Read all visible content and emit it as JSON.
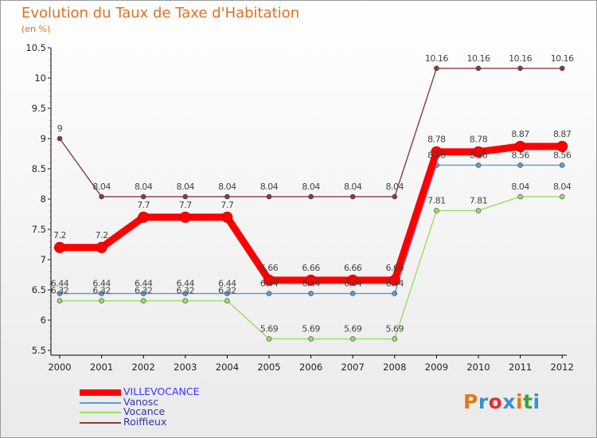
{
  "title": "Evolution du Taux de Taxe d'Habitation",
  "unit_label": "(en %)",
  "brand": {
    "text": "Proxiti",
    "letter_colors": [
      "#e07a1a",
      "#3a8fd0",
      "#e03030",
      "#3a8fd0",
      "#e07a1a",
      "#3aa03a",
      "#3a8fd0"
    ]
  },
  "chart_data": {
    "type": "line",
    "x": [
      "2000",
      "2001",
      "2002",
      "2003",
      "2004",
      "2005",
      "2006",
      "2007",
      "2008",
      "2009",
      "2010",
      "2011",
      "2012"
    ],
    "ylim": [
      5.5,
      10.5
    ],
    "y_ticks": [
      "5.5",
      "6",
      "6.5",
      "7",
      "7.5",
      "8",
      "8.5",
      "9",
      "9.5",
      "10",
      "10.5"
    ],
    "grid": false,
    "legend_position": "bottom-left",
    "series": [
      {
        "name": "VILLEVOCANCE",
        "color": "#ff0000",
        "values": [
          7.2,
          7.2,
          7.7,
          7.7,
          7.7,
          6.66,
          6.66,
          6.66,
          6.66,
          8.78,
          8.78,
          8.87,
          8.87
        ],
        "labels": [
          "7.2",
          "7.2",
          "7.7",
          "7.7",
          "7.7",
          "6.66",
          "6.66",
          "6.66",
          "6.66",
          "8.78",
          "8.78",
          "8.87",
          "8.87"
        ]
      },
      {
        "name": "Vanosc",
        "color": "#5b9bd5",
        "values": [
          6.44,
          6.44,
          6.44,
          6.44,
          6.44,
          6.44,
          6.44,
          6.44,
          6.44,
          8.56,
          8.56,
          8.56,
          8.56
        ],
        "labels": [
          "6.44",
          "6.44",
          "6.44",
          "6.44",
          "6.44",
          "6.44",
          "6.44",
          "6.44",
          "6.44",
          "8.56",
          "8.56",
          "8.56",
          "8.56"
        ]
      },
      {
        "name": "Vocance",
        "color": "#99dd66",
        "values": [
          6.32,
          6.32,
          6.32,
          6.32,
          6.32,
          5.69,
          5.69,
          5.69,
          5.69,
          7.81,
          7.81,
          8.04,
          8.04
        ],
        "labels": [
          "6.32",
          "6.32",
          "6.32",
          "6.32",
          "6.32",
          "5.69",
          "5.69",
          "5.69",
          "5.69",
          "7.81",
          "7.81",
          "8.04",
          "8.04"
        ]
      },
      {
        "name": "Roiffieux",
        "color": "#8b3a3a",
        "values": [
          9,
          8.04,
          8.04,
          8.04,
          8.04,
          8.04,
          8.04,
          8.04,
          8.04,
          10.16,
          10.16,
          10.16,
          10.16
        ],
        "labels": [
          "9",
          "8.04",
          "8.04",
          "8.04",
          "8.04",
          "8.04",
          "8.04",
          "8.04",
          "8.04",
          "10.16",
          "10.16",
          "10.16",
          "10.16"
        ]
      }
    ]
  }
}
